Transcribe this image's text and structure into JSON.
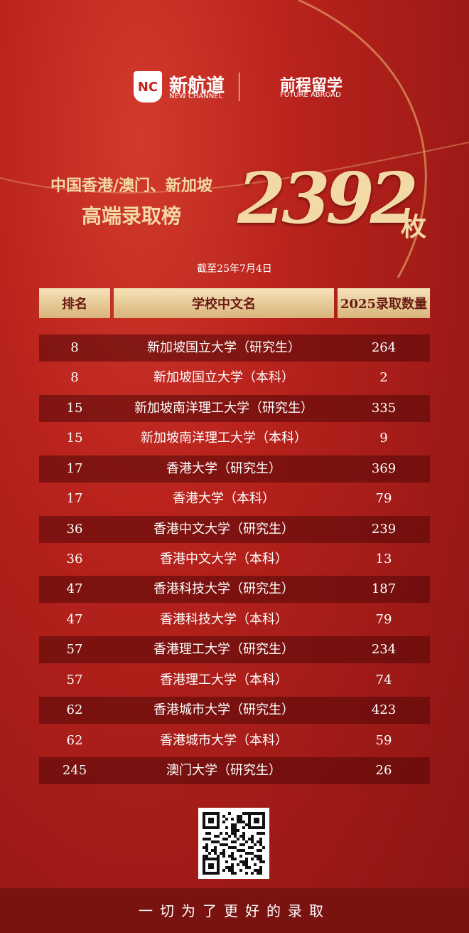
{
  "header": {
    "logo_mark": "NC",
    "brand1": "新航道",
    "brand1_en": "NEW CHANNEL",
    "brand2": "前程留学",
    "brand2_en": "FUTURE ABROAD"
  },
  "title": {
    "line1": "中国香港/澳门、新加坡",
    "line2": "高端录取榜",
    "total": "2392",
    "unit": "枚",
    "note": "截至25年7月4日"
  },
  "table": {
    "columns": [
      "排名",
      "学校中文名",
      "2025录取数量"
    ],
    "rows": [
      [
        8,
        "新加坡国立大学（研究生）",
        264
      ],
      [
        8,
        "新加坡国立大学（本科）",
        2
      ],
      [
        15,
        "新加坡南洋理工大学（研究生）",
        335
      ],
      [
        15,
        "新加坡南洋理工大学（本科）",
        9
      ],
      [
        17,
        "香港大学（研究生）",
        369
      ],
      [
        17,
        "香港大学（本科）",
        79
      ],
      [
        36,
        "香港中文大学（研究生）",
        239
      ],
      [
        36,
        "香港中文大学（本科）",
        13
      ],
      [
        47,
        "香港科技大学（研究生）",
        187
      ],
      [
        47,
        "香港科技大学（本科）",
        79
      ],
      [
        57,
        "香港理工大学（研究生）",
        234
      ],
      [
        57,
        "香港理工大学（本科）",
        74
      ],
      [
        62,
        "香港城市大学（研究生）",
        423
      ],
      [
        62,
        "香港城市大学（本科）",
        59
      ],
      [
        245,
        "澳门大学（研究生）",
        26
      ]
    ]
  },
  "footer": {
    "slogan": "一切为了更好的录取"
  }
}
